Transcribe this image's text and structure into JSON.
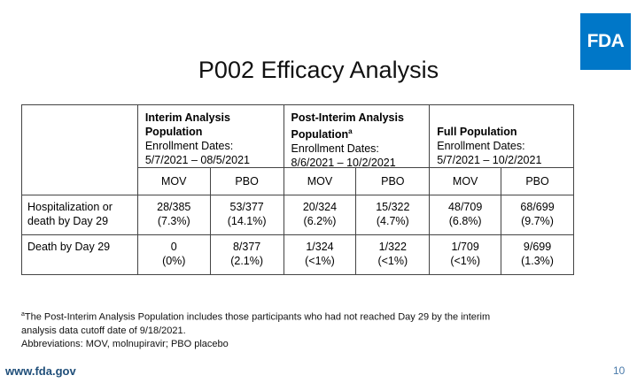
{
  "logo": {
    "text": "FDA",
    "color": "#0077c8"
  },
  "title": "P002 Efficacy Analysis",
  "groups": [
    {
      "title_line1": "Interim Analysis",
      "title_line2": "Population",
      "title_sup": "",
      "dates_label": "Enrollment Dates:",
      "dates": "5/7/2021 – 08/5/2021"
    },
    {
      "title_line1": "Post-Interim Analysis",
      "title_line2": "Population",
      "title_sup": "a",
      "dates_label": "Enrollment Dates:",
      "dates": "8/6/2021 – 10/2/2021"
    },
    {
      "title_line1": "Full Population",
      "title_line2": "",
      "title_sup": "",
      "dates_label": "Enrollment Dates:",
      "dates": "5/7/2021 – 10/2/2021"
    }
  ],
  "subheaders": [
    "MOV",
    "PBO",
    "MOV",
    "PBO",
    "MOV",
    "PBO"
  ],
  "rows": [
    {
      "label_line1": "Hospitalization or",
      "label_line2": "death by Day 29",
      "cells": [
        {
          "count": "28/385",
          "pct": "(7.3%)"
        },
        {
          "count": "53/377",
          "pct": "(14.1%)"
        },
        {
          "count": "20/324",
          "pct": "(6.2%)"
        },
        {
          "count": "15/322",
          "pct": "(4.7%)"
        },
        {
          "count": "48/709",
          "pct": "(6.8%)"
        },
        {
          "count": "68/699",
          "pct": "(9.7%)"
        }
      ]
    },
    {
      "label_line1": "Death by Day 29",
      "label_line2": "",
      "cells": [
        {
          "count": "0",
          "pct": "(0%)"
        },
        {
          "count": "8/377",
          "pct": "(2.1%)"
        },
        {
          "count": "1/324",
          "pct": "(<1%)"
        },
        {
          "count": "1/322",
          "pct": "(<1%)"
        },
        {
          "count": "1/709",
          "pct": "(<1%)"
        },
        {
          "count": "9/699",
          "pct": "(1.3%)"
        }
      ]
    }
  ],
  "footnote": {
    "sup": "a",
    "line1": "The Post-Interim Analysis Population includes those participants who had not reached Day 29 by the interim",
    "line2": "analysis data cutoff date of 9/18/2021.",
    "line3": "Abbreviations: MOV, molnupiravir; PBO placebo"
  },
  "footer": {
    "url": "www.fda.gov",
    "page_number": "10"
  }
}
